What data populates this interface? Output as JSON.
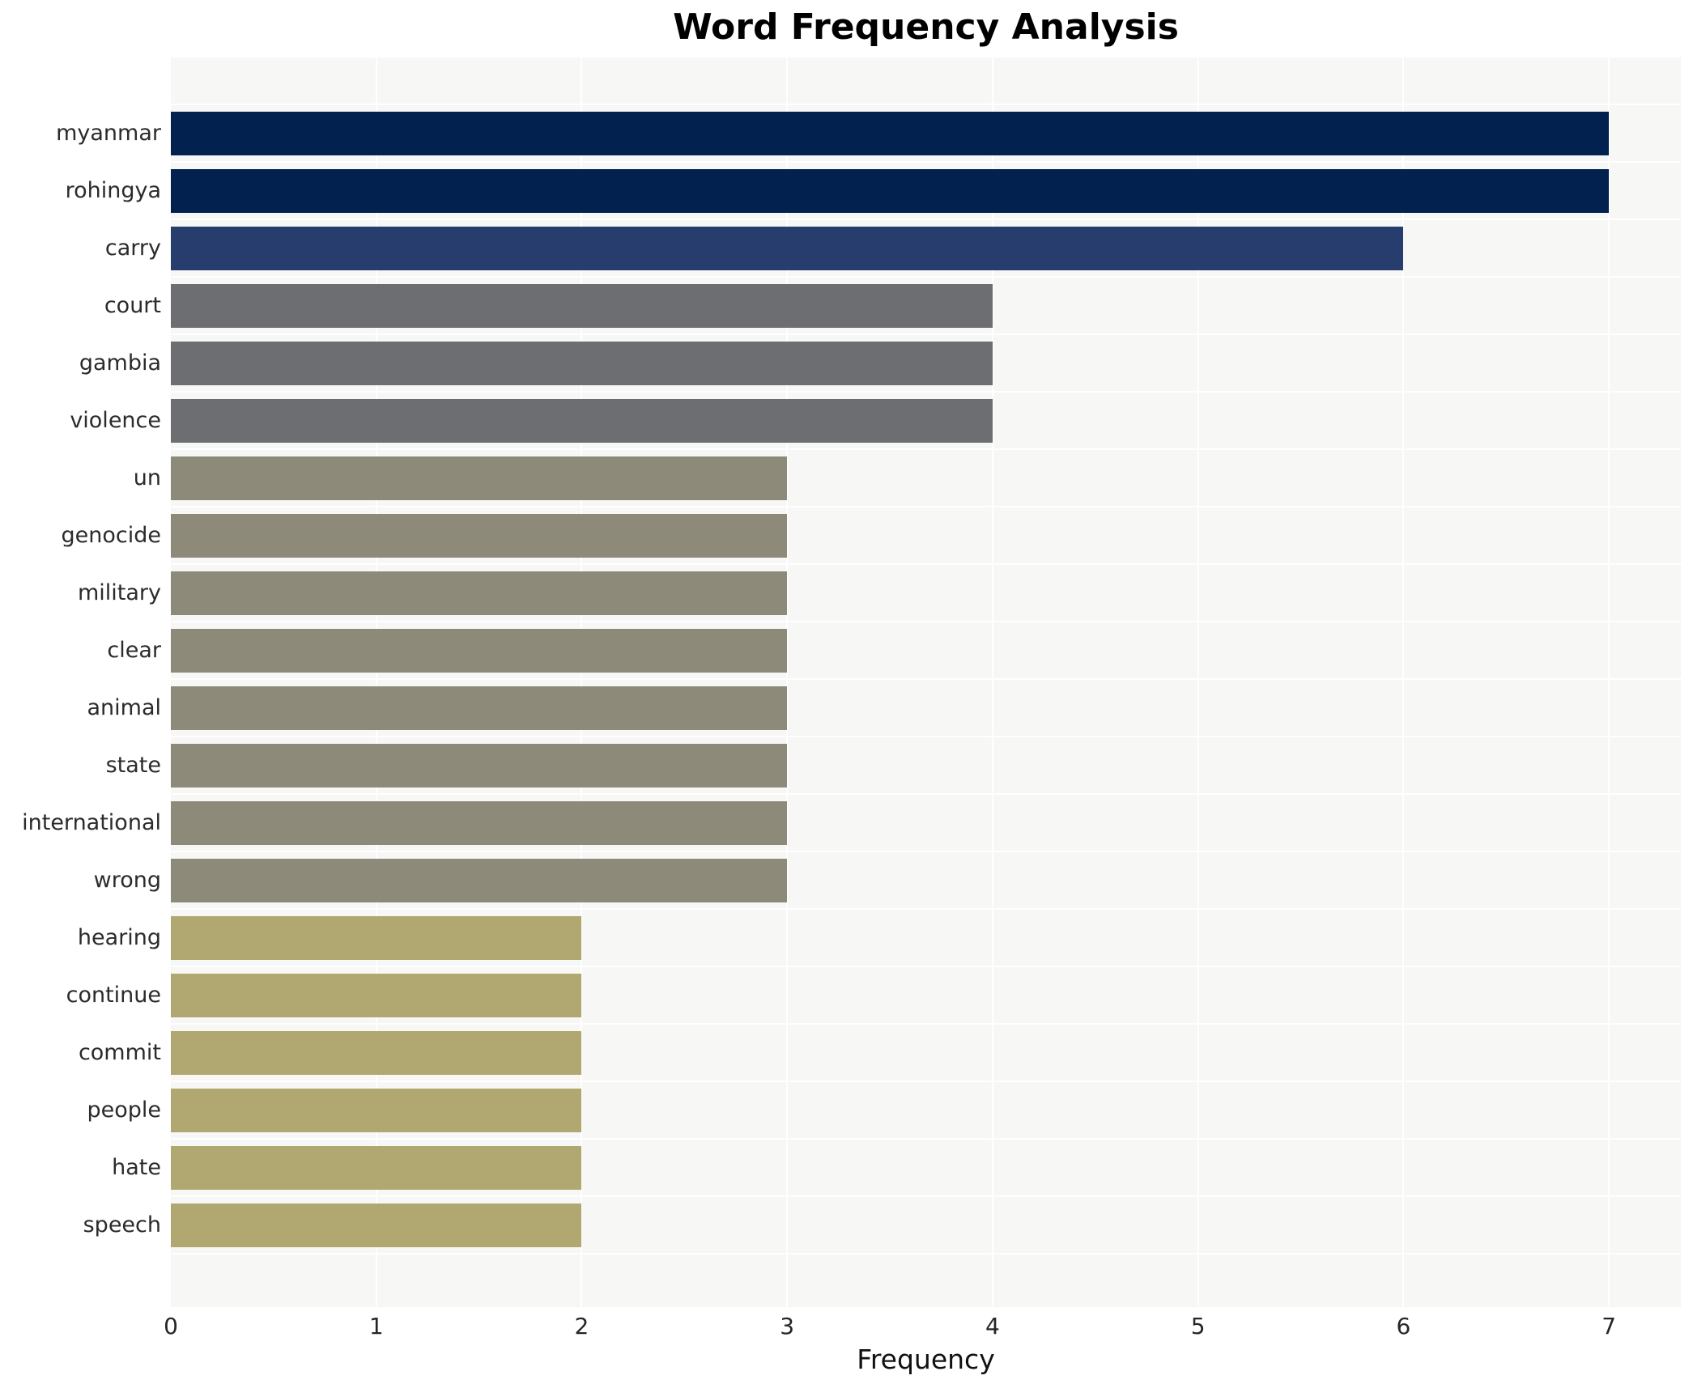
{
  "page": {
    "background": "#ffffff"
  },
  "chart_data": {
    "type": "bar",
    "orientation": "horizontal",
    "title": "Word Frequency Analysis",
    "xlabel": "Frequency",
    "ylabel": "",
    "categories": [
      "myanmar",
      "rohingya",
      "carry",
      "court",
      "gambia",
      "violence",
      "un",
      "genocide",
      "military",
      "clear",
      "animal",
      "state",
      "international",
      "wrong",
      "hearing",
      "continue",
      "commit",
      "people",
      "hate",
      "speech"
    ],
    "values": [
      7,
      7,
      6,
      4,
      4,
      4,
      3,
      3,
      3,
      3,
      3,
      3,
      3,
      3,
      2,
      2,
      2,
      2,
      2,
      2
    ],
    "bar_colors": [
      "#02214e",
      "#02214e",
      "#263d6d",
      "#6d6e71",
      "#6d6e71",
      "#6d6e71",
      "#8e8a79",
      "#8e8a79",
      "#8e8a79",
      "#8e8a79",
      "#8e8a79",
      "#8e8a79",
      "#8e8a79",
      "#8e8a79",
      "#b0a870",
      "#b0a870",
      "#b0a870",
      "#b0a870",
      "#b0a870",
      "#b0a870"
    ],
    "x_ticks": [
      "0",
      "1",
      "2",
      "3",
      "4",
      "5",
      "6",
      "7"
    ],
    "xlim": [
      0,
      7.35
    ],
    "grid": true,
    "legend_position": "none",
    "plot_background": "#f7f7f6",
    "grid_color": "#ffffff",
    "palette": {
      "frequency_7": "#02214e",
      "frequency_6": "#263d6d",
      "frequency_4": "#6d6e71",
      "frequency_3": "#8e8a79",
      "frequency_2": "#b0a870"
    }
  }
}
